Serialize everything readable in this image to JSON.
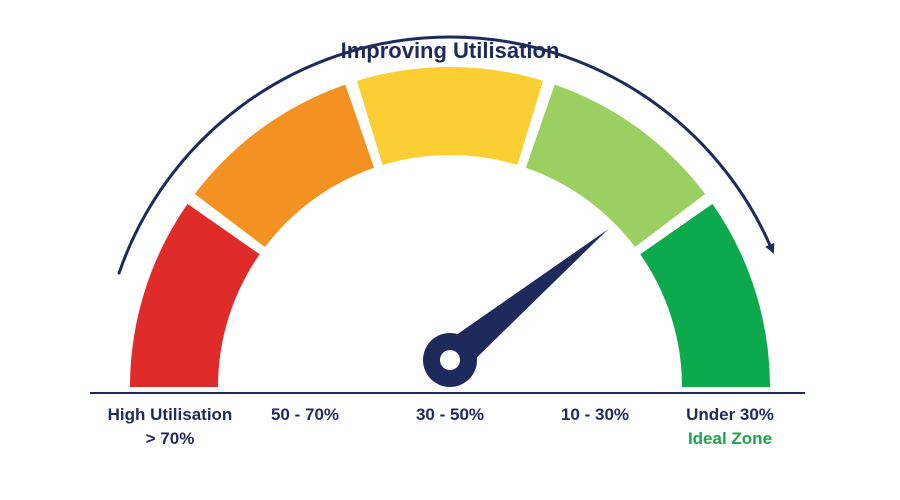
{
  "title": "Improving Utilisation",
  "needle_value": 0.78,
  "colors": {
    "text": "#1f2a5c",
    "needle": "#1f2a5c",
    "ideal_zone_text": "#1aa64a"
  },
  "segments": [
    {
      "label": "High Utilisation",
      "sublabel": "> 70%",
      "color": "#e02b2b"
    },
    {
      "label": "50 - 70%",
      "sublabel": "",
      "color": "#f39222"
    },
    {
      "label": "30 - 50%",
      "sublabel": "",
      "color": "#fbcf33"
    },
    {
      "label": "10 - 30%",
      "sublabel": "",
      "color": "#9ccf62"
    },
    {
      "label": "Under 30%",
      "sublabel": "Ideal Zone",
      "color": "#0caa4d"
    }
  ]
}
